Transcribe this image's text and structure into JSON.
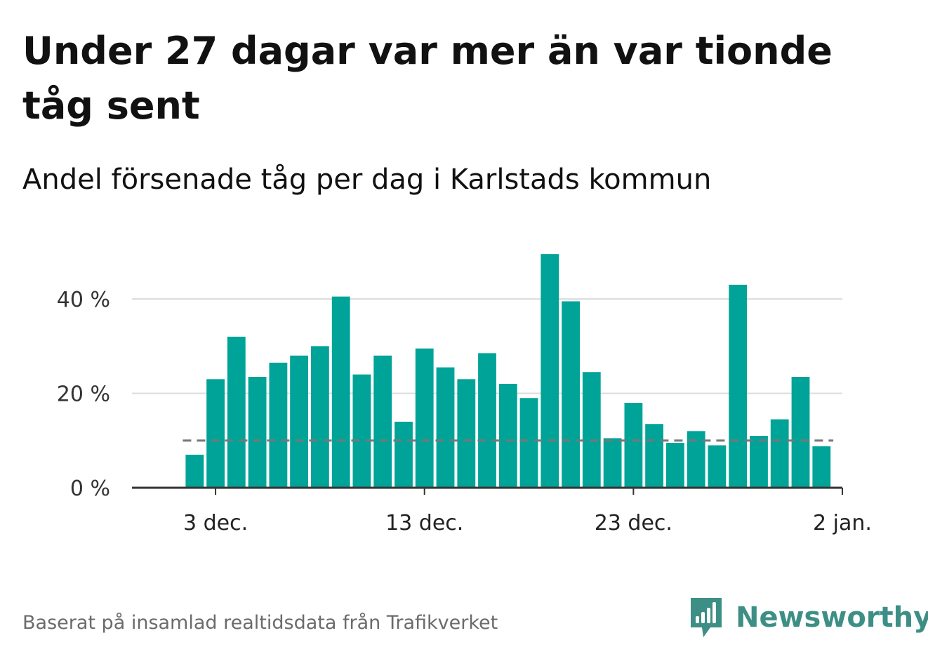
{
  "title": "Under 27 dagar var mer än var tionde tåg sent",
  "subtitle": "Andel försenade tåg per dag i Karlstads kommun",
  "source": "Baserat på insamlad realtidsdata från Trafikverket",
  "brand": {
    "name": "Newsworthy",
    "logo_icon": "newsworthy-bar-chart-logo",
    "color": "#3d8f86"
  },
  "colors": {
    "bar": "#00a398",
    "reference_line": "#777777",
    "grid": "#dddddd",
    "axis": "#333333"
  },
  "chart_data": {
    "type": "bar",
    "x_label_ticks": [
      {
        "label": "3 dec.",
        "date": "2023-12-03"
      },
      {
        "label": "13 dec.",
        "date": "2023-12-13"
      },
      {
        "label": "23 dec.",
        "date": "2023-12-23"
      },
      {
        "label": "2 jan.",
        "date": "2024-01-02"
      }
    ],
    "y_ticks": [
      {
        "value": 0,
        "label": "0 %"
      },
      {
        "value": 20,
        "label": "20 %"
      },
      {
        "value": 40,
        "label": "40 %"
      }
    ],
    "ylim": [
      0,
      50
    ],
    "xlim": [
      "2023-11-29",
      "2024-01-02"
    ],
    "grid": true,
    "reference_line": {
      "value": 10,
      "style": "dashed"
    },
    "dates": [
      "2023-12-02",
      "2023-12-03",
      "2023-12-04",
      "2023-12-05",
      "2023-12-06",
      "2023-12-07",
      "2023-12-08",
      "2023-12-09",
      "2023-12-10",
      "2023-12-11",
      "2023-12-12",
      "2023-12-13",
      "2023-12-14",
      "2023-12-15",
      "2023-12-16",
      "2023-12-17",
      "2023-12-18",
      "2023-12-19",
      "2023-12-20",
      "2023-12-21",
      "2023-12-22",
      "2023-12-23",
      "2023-12-24",
      "2023-12-25",
      "2023-12-26",
      "2023-12-27",
      "2023-12-28",
      "2023-12-29",
      "2023-12-30",
      "2023-12-31",
      "2024-01-01"
    ],
    "values": [
      7,
      23,
      32,
      23.5,
      26.5,
      28,
      30,
      40.5,
      24,
      28,
      14,
      29.5,
      25.5,
      23,
      28.5,
      22,
      19,
      49.5,
      39.5,
      24.5,
      10.5,
      18,
      13.5,
      9.5,
      12,
      9,
      43,
      11,
      14.5,
      23.5,
      8.8
    ]
  }
}
